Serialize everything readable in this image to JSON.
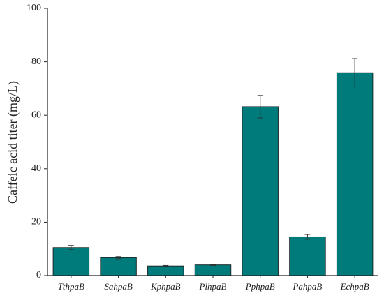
{
  "chart_data": {
    "type": "bar",
    "ylabel": "Caffeic acid titer (mg/L)",
    "categories": [
      "TthpaB",
      "SahpaB",
      "KphpaB",
      "PlhpaB",
      "PphpaB",
      "PahpaB",
      "EchpaB"
    ],
    "values": [
      10.5,
      6.7,
      3.6,
      4.0,
      63.2,
      14.5,
      75.9
    ],
    "errors": [
      0.8,
      0.4,
      0.2,
      0.2,
      4.2,
      0.9,
      5.3
    ],
    "color": "#007b7b",
    "ylim": [
      0,
      100
    ],
    "yticks": [
      0,
      20,
      40,
      60,
      80,
      100
    ]
  }
}
